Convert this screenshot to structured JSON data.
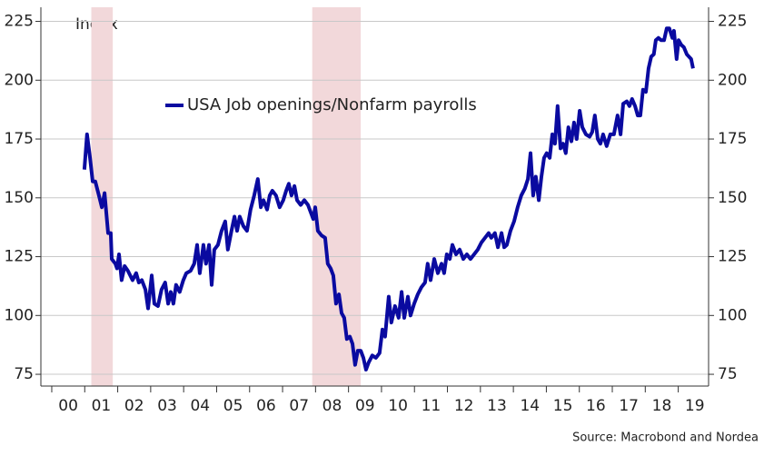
{
  "chart_data": {
    "type": "line",
    "y_axis_label": "Index",
    "source": "Source: Macrobond and Nordea",
    "xlim": [
      1999.67,
      2019.92
    ],
    "ylim": [
      70,
      231
    ],
    "yticks": [
      75,
      100,
      125,
      150,
      175,
      200,
      225
    ],
    "xticks": [
      {
        "value": 2000,
        "label": "00"
      },
      {
        "value": 2001,
        "label": "01"
      },
      {
        "value": 2002,
        "label": "02"
      },
      {
        "value": 2003,
        "label": "03"
      },
      {
        "value": 2004,
        "label": "04"
      },
      {
        "value": 2005,
        "label": "05"
      },
      {
        "value": 2006,
        "label": "06"
      },
      {
        "value": 2007,
        "label": "07"
      },
      {
        "value": 2008,
        "label": "08"
      },
      {
        "value": 2009,
        "label": "09"
      },
      {
        "value": 2010,
        "label": "10"
      },
      {
        "value": 2011,
        "label": "11"
      },
      {
        "value": 2012,
        "label": "12"
      },
      {
        "value": 2013,
        "label": "13"
      },
      {
        "value": 2014,
        "label": "14"
      },
      {
        "value": 2015,
        "label": "15"
      },
      {
        "value": 2016,
        "label": "16"
      },
      {
        "value": 2017,
        "label": "17"
      },
      {
        "value": 2018,
        "label": "18"
      },
      {
        "value": 2019,
        "label": "19"
      }
    ],
    "grid": true,
    "shaded_regions": [
      [
        2001.2,
        2001.85
      ],
      [
        2007.9,
        2009.37
      ]
    ],
    "shade_color": "#f2d8da",
    "x": [
      2000.99,
      2001.07,
      2001.16,
      2001.24,
      2001.32,
      2001.43,
      2001.52,
      2001.6,
      2001.71,
      2001.79,
      2001.82,
      2001.93,
      2001.98,
      2002.04,
      2002.12,
      2002.21,
      2002.31,
      2002.45,
      2002.56,
      2002.64,
      2002.73,
      2002.84,
      2002.92,
      2003.03,
      2003.11,
      2003.22,
      2003.33,
      2003.44,
      2003.53,
      2003.61,
      2003.69,
      2003.77,
      2003.88,
      2003.99,
      2004.08,
      2004.21,
      2004.32,
      2004.41,
      2004.49,
      2004.6,
      2004.68,
      2004.77,
      2004.85,
      2004.93,
      2005.04,
      2005.15,
      2005.26,
      2005.34,
      2005.45,
      2005.54,
      2005.62,
      2005.7,
      2005.81,
      2005.92,
      2006.03,
      2006.14,
      2006.25,
      2006.34,
      2006.42,
      2006.53,
      2006.61,
      2006.69,
      2006.8,
      2006.91,
      2007.02,
      2007.11,
      2007.19,
      2007.27,
      2007.36,
      2007.44,
      2007.55,
      2007.66,
      2007.77,
      2007.85,
      2007.93,
      2007.99,
      2008.07,
      2008.18,
      2008.29,
      2008.37,
      2008.46,
      2008.54,
      2008.62,
      2008.71,
      2008.79,
      2008.87,
      2008.95,
      2009.04,
      2009.12,
      2009.2,
      2009.28,
      2009.37,
      2009.45,
      2009.53,
      2009.61,
      2009.72,
      2009.83,
      2009.94,
      2010.03,
      2010.11,
      2010.22,
      2010.3,
      2010.41,
      2010.52,
      2010.61,
      2010.69,
      2010.8,
      2010.88,
      2010.99,
      2011.1,
      2011.21,
      2011.32,
      2011.4,
      2011.49,
      2011.6,
      2011.71,
      2011.82,
      2011.9,
      2011.98,
      2012.07,
      2012.15,
      2012.26,
      2012.37,
      2012.48,
      2012.59,
      2012.7,
      2012.81,
      2012.92,
      2013.03,
      2013.14,
      2013.25,
      2013.33,
      2013.44,
      2013.53,
      2013.64,
      2013.72,
      2013.8,
      2013.91,
      2014.02,
      2014.13,
      2014.24,
      2014.35,
      2014.44,
      2014.52,
      2014.6,
      2014.68,
      2014.77,
      2014.85,
      2014.93,
      2015.01,
      2015.1,
      2015.18,
      2015.26,
      2015.34,
      2015.43,
      2015.51,
      2015.59,
      2015.67,
      2015.76,
      2015.84,
      2015.92,
      2016.01,
      2016.09,
      2016.2,
      2016.31,
      2016.39,
      2016.47,
      2016.56,
      2016.64,
      2016.72,
      2016.83,
      2016.94,
      2017.05,
      2017.16,
      2017.25,
      2017.33,
      2017.44,
      2017.52,
      2017.6,
      2017.69,
      2017.77,
      2017.85,
      2017.93,
      2018.02,
      2018.1,
      2018.18,
      2018.26,
      2018.32,
      2018.4,
      2018.48,
      2018.57,
      2018.65,
      2018.73,
      2018.82,
      2018.87,
      2018.95,
      2019.01,
      2019.09,
      2019.17,
      2019.26,
      2019.39,
      2019.45
    ],
    "series": [
      {
        "name": "USA Job openings/Nonfarm payrolls",
        "color": "#0a0aa0",
        "values": [
          162,
          177,
          167,
          157,
          157,
          151,
          146,
          152,
          135,
          135,
          124,
          122,
          120,
          126,
          115,
          121,
          119,
          115,
          118,
          114,
          115,
          111,
          103,
          117,
          105,
          104,
          111,
          114,
          105,
          110,
          105,
          113,
          110,
          115,
          118,
          119,
          122,
          130,
          118,
          130,
          122,
          130,
          113,
          128,
          130,
          136,
          140,
          128,
          136,
          142,
          136,
          142,
          138,
          136,
          145,
          151,
          158,
          146,
          149,
          145,
          151,
          153,
          151,
          146,
          149,
          153,
          156,
          151,
          155,
          149,
          147,
          149,
          147,
          144,
          141,
          146,
          136,
          134,
          133,
          122,
          120,
          117,
          105,
          109,
          101,
          99,
          90,
          91,
          88,
          79,
          85,
          85,
          82,
          77,
          80,
          83,
          82,
          84,
          94,
          91,
          108,
          97,
          104,
          99,
          110,
          99,
          108,
          100,
          105,
          109,
          112,
          114,
          122,
          115,
          124,
          118,
          122,
          118,
          126,
          124,
          130,
          126,
          128,
          124,
          126,
          124,
          126,
          128,
          131,
          133,
          135,
          133,
          135,
          129,
          135,
          129,
          130,
          136,
          140,
          146,
          151,
          154,
          158,
          169,
          151,
          159,
          149,
          159,
          167,
          169,
          167,
          177,
          173,
          189,
          171,
          173,
          169,
          180,
          174,
          182,
          175,
          187,
          180,
          177,
          176,
          178,
          185,
          175,
          173,
          177,
          172,
          177,
          177,
          185,
          177,
          190,
          191,
          189,
          192,
          189,
          185,
          185,
          196,
          195,
          205,
          210,
          211,
          217,
          218,
          217,
          217,
          222,
          222,
          218,
          221,
          209,
          217,
          215,
          214,
          211,
          209,
          205
        ]
      }
    ]
  }
}
